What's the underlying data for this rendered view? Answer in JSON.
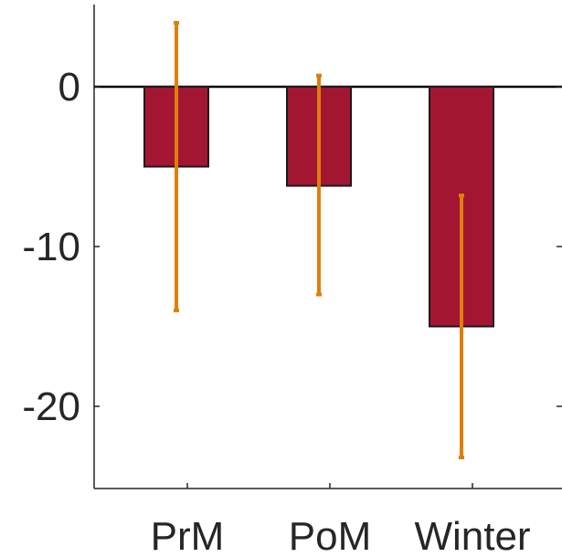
{
  "chart_data": {
    "type": "bar",
    "categories": [
      "PrM",
      "PoM",
      "Winter"
    ],
    "values": [
      -5,
      -6.2,
      -15
    ],
    "error_bars": [
      {
        "low": -14,
        "high": 4
      },
      {
        "low": -13,
        "high": 0.7
      },
      {
        "low": -23.2,
        "high": -6.8
      }
    ],
    "ylim": [
      -25,
      5
    ],
    "yticks": [
      0,
      -10,
      -20
    ],
    "ytick_labels": [
      "0",
      "-10",
      "-20"
    ],
    "title": "",
    "xlabel": "",
    "ylabel": "",
    "grid": false,
    "legend": "none",
    "colors": {
      "bar_fill": "#A31632",
      "bar_edge": "#1a1a1a",
      "error_bar": "#E07E0C",
      "axis": "#262626",
      "zero_line": "#000000"
    }
  }
}
